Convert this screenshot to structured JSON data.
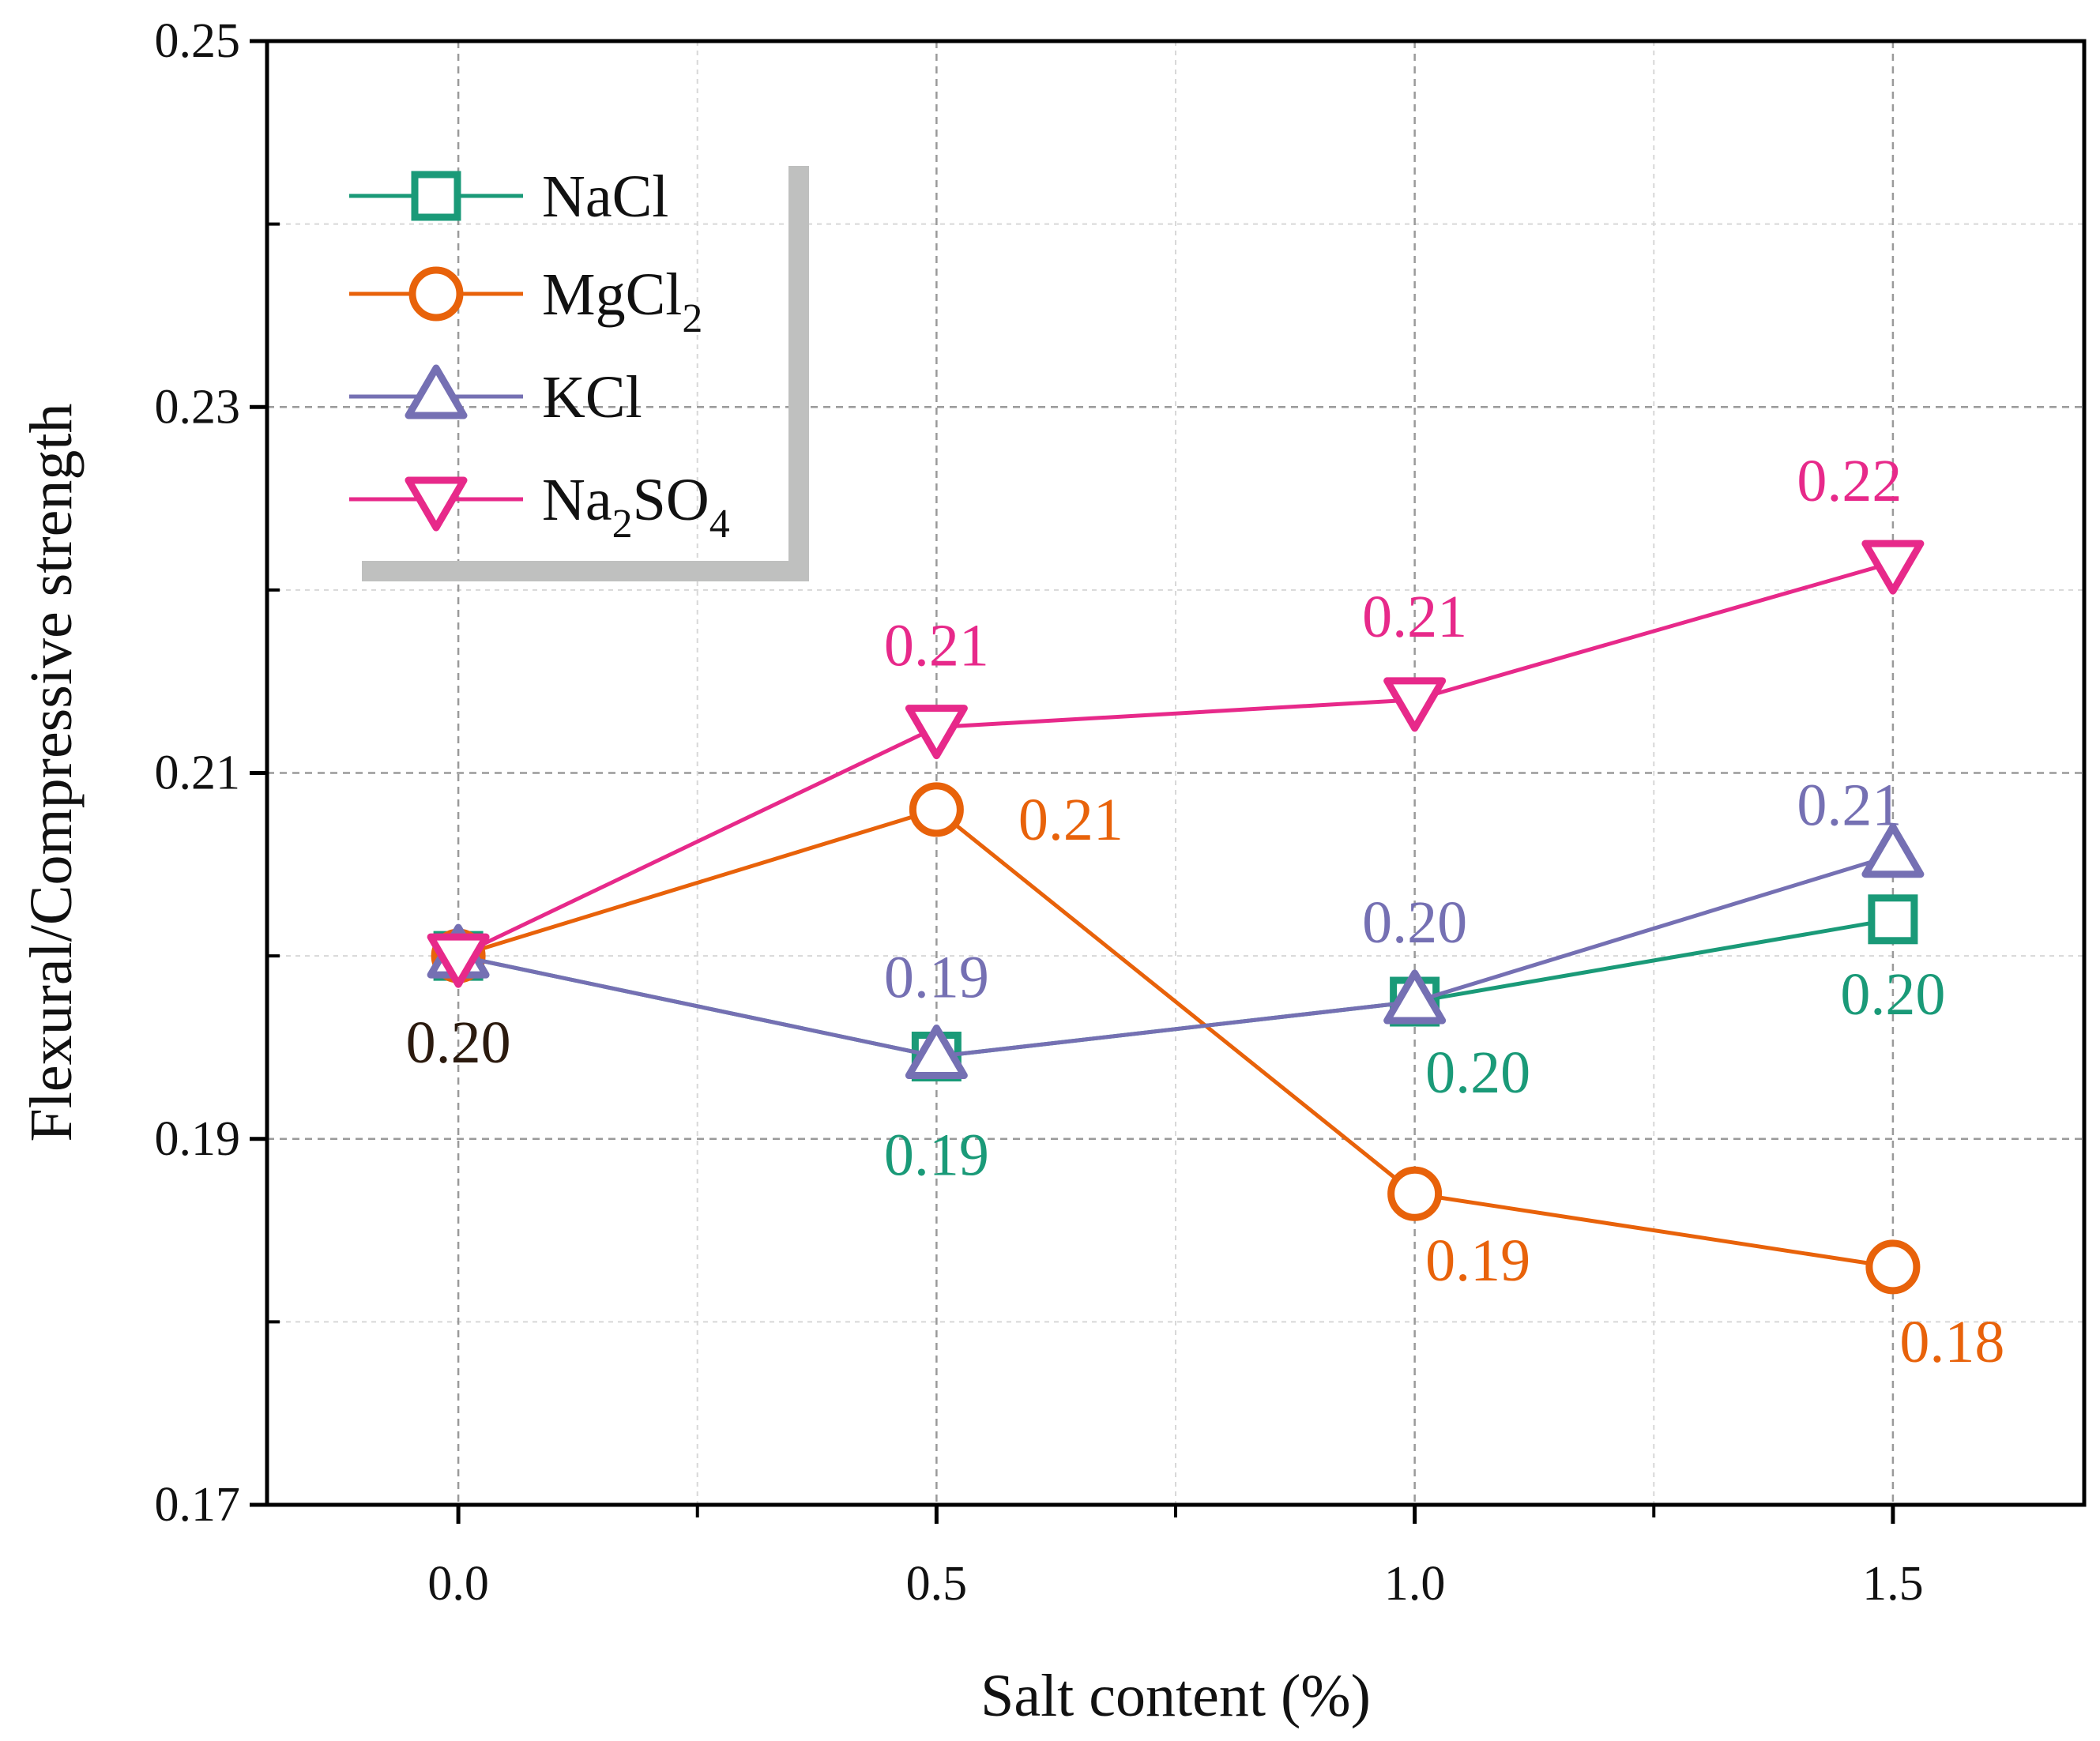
{
  "chart_data": {
    "type": "line",
    "title": "",
    "xlabel": "Salt content (%)",
    "ylabel": "Flexural/Compressive strength",
    "x": [
      0.0,
      0.5,
      1.0,
      1.5
    ],
    "x_tick_labels": [
      "0.0",
      "0.5",
      "1.0",
      "1.5"
    ],
    "y_tick_labels": [
      "0.17",
      "0.19",
      "0.21",
      "0.23",
      "0.25"
    ],
    "xlim": [
      -0.2,
      1.7
    ],
    "ylim": [
      0.17,
      0.25
    ],
    "grid": true,
    "legend_position": "top-left",
    "series": [
      {
        "name": "NaCl",
        "legend_base": "NaCl",
        "legend_sub1": "",
        "legend_mid": "",
        "legend_sub2": "",
        "color": "#1a9a78",
        "marker": "square",
        "values": [
          0.2,
          0.1945,
          0.1975,
          0.202
        ],
        "labels": [
          "",
          "0.19",
          "0.20",
          "0.20"
        ]
      },
      {
        "name": "MgCl2",
        "legend_base": "MgCl",
        "legend_sub1": "2",
        "legend_mid": "",
        "legend_sub2": "",
        "color": "#e8620a",
        "marker": "circle",
        "values": [
          0.2,
          0.208,
          0.187,
          0.183
        ],
        "labels": [
          "",
          "0.21",
          "0.19",
          "0.18"
        ]
      },
      {
        "name": "KCl",
        "legend_base": "KCl",
        "legend_sub1": "",
        "legend_mid": "",
        "legend_sub2": "",
        "color": "#7570b3",
        "marker": "triangle-up",
        "values": [
          0.2,
          0.1945,
          0.1975,
          0.2055
        ],
        "labels": [
          "",
          "0.19",
          "0.20",
          "0.21"
        ]
      },
      {
        "name": "Na2SO4",
        "legend_base": "Na",
        "legend_sub1": "2",
        "legend_mid": "SO",
        "legend_sub2": "4",
        "color": "#e7298a",
        "marker": "triangle-down",
        "values": [
          0.2,
          0.2125,
          0.214,
          0.2215
        ],
        "labels": [
          "",
          "0.21",
          "0.21",
          "0.22"
        ]
      }
    ],
    "shared_label": {
      "x": 0.0,
      "text": "0.20",
      "color": "#2b1a0e"
    }
  }
}
